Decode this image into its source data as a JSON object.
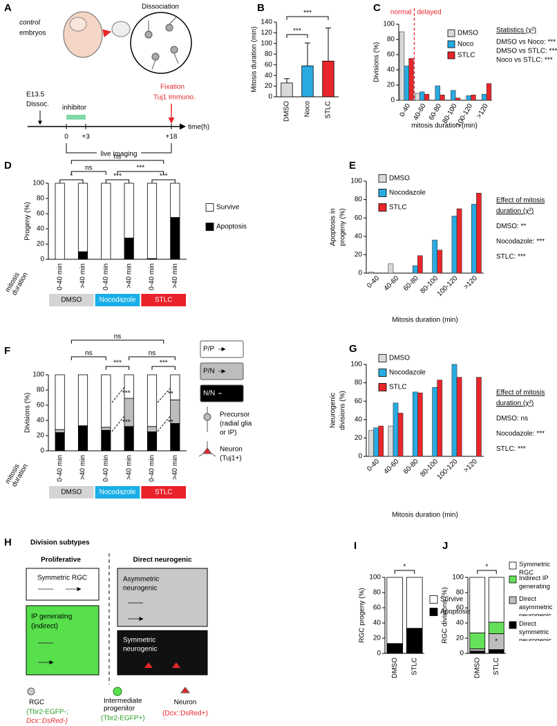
{
  "panel_labels": [
    "A",
    "B",
    "C",
    "D",
    "E",
    "F",
    "G",
    "H",
    "I",
    "J"
  ],
  "panel_a": {
    "embryo_label": [
      "control",
      "embryos"
    ],
    "dissociation": "Dissociation",
    "start": [
      "E13.5",
      "Dissoc."
    ],
    "inhibitor": "inhibitor",
    "fixation": [
      "Fixation",
      "Tuj1 Immuno."
    ],
    "timepoints": [
      "0",
      "+3",
      "+18"
    ],
    "axis_label": "time(h)",
    "imaging": "live imaging"
  },
  "panel_f_cells": {
    "precursor": [
      "Precursor",
      "(radial glia",
      "or IP)"
    ],
    "neuron": [
      "Neuron",
      "(Tuj1+)"
    ]
  },
  "panel_h": {
    "title": "Division subtypes",
    "proliferative": "Proliferative",
    "direct": "Direct neurogenic",
    "boxes": [
      [
        "Symmetric RGC"
      ],
      [
        "IP generating",
        "(indirect)"
      ],
      [
        "Asymmetric",
        "neurogenic"
      ],
      [
        "Symmetric",
        "neurogenic"
      ]
    ],
    "rgc": [
      "RGC",
      "(Tbr2-EGFP-;",
      "Dcx::DsRed-)"
    ],
    "ip": [
      "Intermediate",
      "progenitor",
      "(Tbr2-EGFP+)"
    ],
    "neuron": [
      "Neuron",
      "(Dcx::DsRed+)"
    ]
  },
  "chart_data": [
    {
      "type": "bar",
      "ylabel": "Mitosis duration (min)",
      "categories": [
        "DMSO",
        "Noco",
        "STLC"
      ],
      "values": [
        26,
        58,
        67
      ],
      "errors": [
        8,
        43,
        62
      ],
      "colors": [
        "#d9d9d9",
        "#29abe2",
        "#e8262b"
      ],
      "ylim": [
        0,
        140
      ],
      "yticks": [
        0,
        20,
        40,
        60,
        80,
        100,
        120,
        140
      ],
      "significance": [
        "***",
        "***"
      ]
    },
    {
      "type": "grouped_bar",
      "ylabel": "Divisions (%)",
      "xlabel": "mitosis duration (min)",
      "categories": [
        "0-40",
        "40-60",
        "60-80",
        "80-100",
        "100-120",
        ">120"
      ],
      "series": [
        {
          "name": "DMSO",
          "color": "#d9d9d9",
          "values": [
            90,
            9,
            0,
            0,
            0,
            0
          ]
        },
        {
          "name": "Noco",
          "color": "#29abe2",
          "values": [
            45,
            11,
            19,
            13,
            6,
            8
          ]
        },
        {
          "name": "STLC",
          "color": "#e8262b",
          "values": [
            55,
            8,
            7,
            3,
            7,
            22
          ]
        }
      ],
      "ylim": [
        0,
        100
      ],
      "yticks": [
        0,
        20,
        40,
        60,
        80,
        100
      ],
      "regions": [
        "normal",
        "delayed"
      ],
      "stats_title": "Statistics (χ²)",
      "stats": [
        "DMSO vs Noco: ***",
        "DMSO vs STLC: ***",
        "Noco vs STLC: ***"
      ]
    },
    {
      "type": "stacked_bar",
      "ylabel": "Progeny (%)",
      "x_group_label": [
        "mitosis",
        "duration"
      ],
      "categories": [
        "0-40 min",
        ">40 min",
        "0-40 min",
        ">40 min",
        "0-40 min",
        ">40 min"
      ],
      "groups": [
        {
          "name": "DMSO",
          "color": "#d4d4d4"
        },
        {
          "name": "Nocodazole",
          "color": "#1aaee8"
        },
        {
          "name": "STLC",
          "color": "#e8212a"
        }
      ],
      "series": [
        {
          "name": "Apoptosis",
          "color": "#000000",
          "values": [
            0,
            10,
            0,
            28,
            1,
            55
          ]
        },
        {
          "name": "Survive",
          "color": "#ffffff",
          "values": [
            100,
            90,
            100,
            72,
            99,
            45
          ]
        }
      ],
      "ylim": [
        0,
        100
      ],
      "yticks": [
        0,
        20,
        40,
        60,
        80,
        100
      ],
      "significance": [
        "ns",
        "ns",
        "***",
        "*",
        "***",
        "***"
      ]
    },
    {
      "type": "grouped_bar",
      "ylabel": [
        "Apoptosis in",
        "progeny (%)"
      ],
      "xlabel": "Mitosis duration (min)",
      "categories": [
        "0-40",
        "40-60",
        "60-80",
        "80-100",
        "100-120",
        ">120"
      ],
      "series": [
        {
          "name": "DMSO",
          "color": "#d9d9d9",
          "values": [
            1,
            10,
            0,
            0,
            0,
            0
          ]
        },
        {
          "name": "Nocodazole",
          "color": "#29abe2",
          "values": [
            0,
            0,
            8,
            36,
            62,
            75
          ]
        },
        {
          "name": "STLC",
          "color": "#e8262b",
          "values": [
            0,
            0,
            19,
            25,
            70,
            87
          ]
        }
      ],
      "ylim": [
        0,
        100
      ],
      "yticks": [
        0,
        20,
        40,
        60,
        80,
        100
      ],
      "stats_title": [
        "Effect of mitosis",
        "duration (χ²)"
      ],
      "stats": [
        "DMSO: **",
        "Nocodazole: ***",
        "STLC: ***"
      ]
    },
    {
      "type": "stacked_bar",
      "ylabel": "Divisions (%)",
      "x_group_label": [
        "mitosis",
        "duration"
      ],
      "categories": [
        "0-40 min",
        ">40 min",
        "0-40 min",
        ">40 min",
        "0-40 min",
        ">40 min"
      ],
      "groups": [
        {
          "name": "DMSO",
          "color": "#d4d4d4"
        },
        {
          "name": "Nocodazole",
          "color": "#1aaee8"
        },
        {
          "name": "STLC",
          "color": "#e8212a"
        }
      ],
      "series": [
        {
          "name": "N/N",
          "color": "#000000",
          "values": [
            24,
            33,
            27,
            32,
            25,
            36
          ]
        },
        {
          "name": "P/N",
          "color": "#bdbdbd",
          "values": [
            4,
            0,
            4,
            37,
            7,
            31
          ]
        },
        {
          "name": "P/P",
          "color": "#ffffff",
          "values": [
            72,
            67,
            69,
            31,
            68,
            33
          ]
        }
      ],
      "ylim": [
        0,
        100
      ],
      "yticks": [
        0,
        20,
        40,
        60,
        80,
        100
      ],
      "significance": [
        "ns",
        "ns",
        "***",
        "ns",
        "***"
      ],
      "inner_significance": [
        "***",
        "***",
        "**",
        "**"
      ]
    },
    {
      "type": "grouped_bar",
      "ylabel": [
        "Neurogenic",
        "divisions (%)"
      ],
      "xlabel": "Mitosis duration (min)",
      "categories": [
        "0-40",
        "40-60",
        "60-80",
        "80-100",
        "100-120",
        ">120"
      ],
      "series": [
        {
          "name": "DMSO",
          "color": "#d9d9d9",
          "values": [
            28,
            33,
            0,
            0,
            0,
            0
          ]
        },
        {
          "name": "Nocodazole",
          "color": "#29abe2",
          "values": [
            31,
            58,
            70,
            75,
            100,
            0
          ]
        },
        {
          "name": "STLC",
          "color": "#e8262b",
          "values": [
            33,
            47,
            69,
            83,
            86,
            86
          ]
        }
      ],
      "ylim": [
        0,
        100
      ],
      "yticks": [
        0,
        20,
        40,
        60,
        80,
        100
      ],
      "stats_title": [
        "Effect of mitosis",
        "duration (χ²)"
      ],
      "stats": [
        "DMSO: ns",
        "Nocodazole: ***",
        "STLC: ***"
      ]
    },
    {
      "type": "stacked_bar",
      "ylabel": "RGC progeny (%)",
      "categories": [
        "DMSO",
        "STLC"
      ],
      "series": [
        {
          "name": "Apoptosis",
          "color": "#000000",
          "values": [
            13,
            33
          ]
        },
        {
          "name": "Survive",
          "color": "#ffffff",
          "values": [
            87,
            67
          ]
        }
      ],
      "ylim": [
        0,
        100
      ],
      "yticks": [
        0,
        20,
        40,
        60,
        80,
        100
      ],
      "significance": [
        "*"
      ]
    },
    {
      "type": "stacked_bar",
      "ylabel": "RGC divisions (%)",
      "categories": [
        "DMSO",
        "STLC"
      ],
      "series": [
        {
          "name": "Direct symmetric neurogenic",
          "color": "#000000",
          "values": [
            3,
            5
          ]
        },
        {
          "name": "Direct asymmetric neurogenic",
          "color": "#bdbdbd",
          "values": [
            3,
            21
          ]
        },
        {
          "name": "Indirect IP generating",
          "color": "#66e05a",
          "values": [
            21,
            15
          ]
        },
        {
          "name": "Symmetric RGC",
          "color": "#ffffff",
          "values": [
            73,
            59
          ]
        }
      ],
      "ylim": [
        0,
        100
      ],
      "yticks": [
        0,
        20,
        40,
        60,
        80,
        100
      ],
      "significance": [
        "*"
      ],
      "annotation": "*"
    }
  ]
}
